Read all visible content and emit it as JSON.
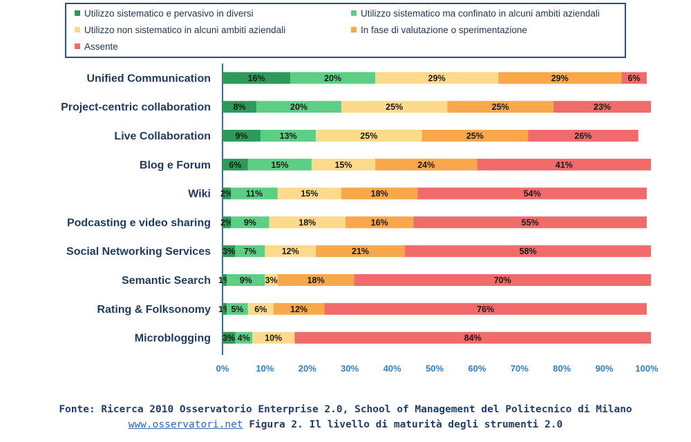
{
  "chart_data": {
    "type": "bar",
    "orientation": "horizontal",
    "stacked": true,
    "categories": [
      "Unified Communication",
      "Project-centric collaboration",
      "Live Collaboration",
      "Blog e Forum",
      "Wiki",
      "Podcasting e video sharing",
      "Social Networking Services",
      "Semantic Search",
      "Rating & Folksonomy",
      "Microblogging"
    ],
    "series": [
      {
        "name": "Utilizzo sistematico e pervasivo in diversi",
        "color": "#2e9a5a",
        "values": [
          16,
          8,
          9,
          6,
          2,
          2,
          3,
          1,
          1,
          3
        ]
      },
      {
        "name": "Utilizzo sistematico ma confinato in alcuni ambiti aziendali",
        "color": "#5ccf85",
        "values": [
          20,
          20,
          13,
          15,
          11,
          9,
          7,
          9,
          5,
          4
        ]
      },
      {
        "name": "Utilizzo non sistematico in alcuni ambiti aziendali",
        "color": "#fdd98c",
        "values": [
          29,
          25,
          25,
          15,
          15,
          18,
          12,
          3,
          6,
          10
        ]
      },
      {
        "name": "In fase di valutazione o sperimentazione",
        "color": "#f8a84a",
        "values": [
          29,
          25,
          25,
          24,
          18,
          16,
          21,
          18,
          12,
          0
        ]
      },
      {
        "name": "Assente",
        "color": "#f26b6b",
        "values": [
          6,
          23,
          26,
          41,
          54,
          55,
          58,
          70,
          76,
          84
        ]
      }
    ],
    "xlim": [
      0,
      100
    ],
    "x_ticks": [
      "0%",
      "10%",
      "20%",
      "30%",
      "40%",
      "50%",
      "60%",
      "70%",
      "80%",
      "90%",
      "100%"
    ],
    "value_suffix": "%",
    "legend_position": "top"
  },
  "footer": {
    "source": "Fonte: Ricerca 2010 Osservatorio Enterprise 2.0, School of Management del Politecnico di Milano",
    "site": "www.osservatori.net",
    "caption": " Figura 2. Il livello di maturità degli strumenti 2.0"
  }
}
